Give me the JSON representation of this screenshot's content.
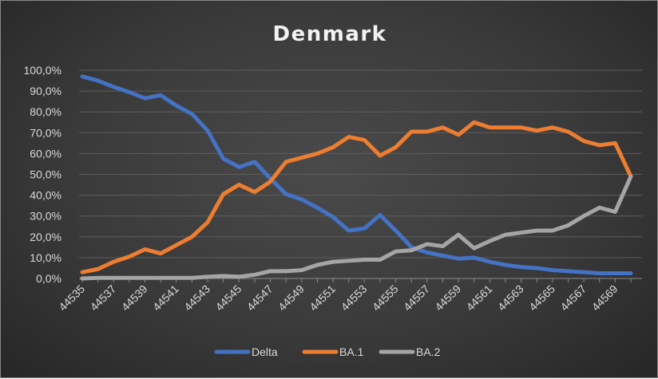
{
  "chart_data": {
    "type": "line",
    "title": "Denmark",
    "xlabel": "",
    "ylabel": "",
    "ylim": [
      0,
      100
    ],
    "yticks": [
      "0,0%",
      "10,0%",
      "20,0%",
      "30,0%",
      "40,0%",
      "50,0%",
      "60,0%",
      "70,0%",
      "80,0%",
      "90,0%",
      "100,0%"
    ],
    "x": [
      44535,
      44536,
      44537,
      44538,
      44539,
      44540,
      44541,
      44542,
      44543,
      44544,
      44545,
      44546,
      44547,
      44548,
      44549,
      44550,
      44551,
      44552,
      44553,
      44554,
      44555,
      44556,
      44557,
      44558,
      44559,
      44560,
      44561,
      44562,
      44563,
      44564,
      44565,
      44566,
      44567,
      44568,
      44569,
      44570
    ],
    "xtick_labels": [
      "44535",
      "44537",
      "44539",
      "44541",
      "44543",
      "44545",
      "44547",
      "44549",
      "44551",
      "44553",
      "44555",
      "44557",
      "44559",
      "44561",
      "44563",
      "44565",
      "44567",
      "44569"
    ],
    "grid": true,
    "legend_position": "bottom",
    "series": [
      {
        "name": "Delta",
        "color": "#4472c4",
        "values": [
          97,
          95,
          92,
          89.5,
          86.5,
          88,
          83,
          79,
          71,
          57.5,
          53.5,
          56,
          48,
          40.5,
          38,
          34,
          29.5,
          23,
          24,
          30.5,
          23,
          15,
          12.5,
          11,
          9.5,
          10,
          8,
          6.5,
          5.5,
          5,
          4,
          3.5,
          3,
          2.5,
          2.5,
          2.5
        ]
      },
      {
        "name": "BA.1",
        "color": "#ed7d31",
        "values": [
          3,
          4.5,
          8,
          10.5,
          14,
          12,
          16,
          20,
          27,
          40.5,
          45,
          41.5,
          46.5,
          56,
          58,
          60,
          63,
          68,
          66.5,
          59,
          63,
          70.5,
          70.5,
          72.5,
          69,
          75,
          72.5,
          72.5,
          72.5,
          71,
          72.5,
          70.5,
          66,
          64,
          65,
          49
        ]
      },
      {
        "name": "BA.2",
        "color": "#a5a5a5",
        "values": [
          0,
          0.3,
          0.3,
          0.3,
          0.3,
          0.3,
          0.3,
          0.3,
          0.8,
          1.2,
          0.8,
          1.8,
          3.5,
          3.5,
          4,
          6.5,
          8,
          8.5,
          9,
          9,
          13,
          13.5,
          16.5,
          15.5,
          21,
          14.5,
          18,
          21,
          22,
          23,
          23,
          25.5,
          30,
          34,
          32,
          49
        ]
      }
    ]
  }
}
